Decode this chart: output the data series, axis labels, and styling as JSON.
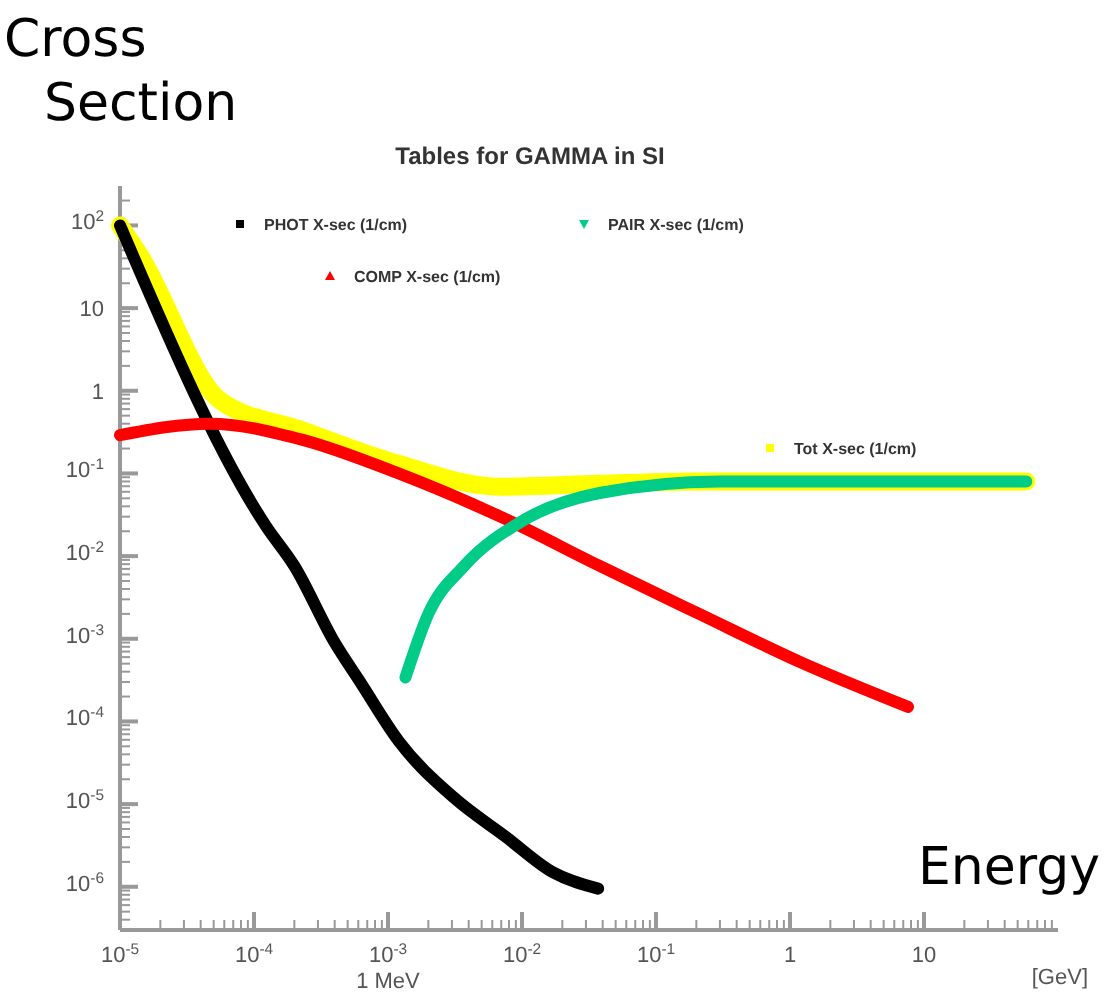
{
  "chart_data": {
    "type": "line",
    "title": "Tables for GAMMA in SI",
    "ylabel": "Cross Section",
    "xlabel": "[GeV]",
    "annotations": [
      "Energy",
      "1 MeV"
    ],
    "log": "xy",
    "xlim": [
      1e-05,
      100
    ],
    "ylim": [
      3e-07,
      300
    ],
    "xticks": [
      {
        "value": 1e-05,
        "label": "10$^{-5}$"
      },
      {
        "value": 0.0001,
        "label": "10$^{-4}$"
      },
      {
        "value": 0.001,
        "label": "10$^{-3}$"
      },
      {
        "value": 0.01,
        "label": "10$^{-2}$"
      },
      {
        "value": 0.1,
        "label": "10$^{-1}$"
      },
      1,
      10
    ],
    "yticks": [
      {
        "value": 1e-06,
        "label": "10$^{-6}$"
      },
      {
        "value": 1e-05,
        "label": "10$^{-5}$"
      },
      {
        "value": 0.0001,
        "label": "10$^{-4}$"
      },
      {
        "value": 0.001,
        "label": "10$^{-3}$"
      },
      {
        "value": 0.01,
        "label": "10$^{-2}$"
      },
      {
        "value": 0.1,
        "label": "10$^{-1}$"
      },
      1,
      10,
      {
        "value": 100,
        "label": "10$^{2}$"
      }
    ],
    "grid": false,
    "legend": "top",
    "marker": "none",
    "line_style": "solid",
    "series": [
      {
        "name": "Tot X-sec (1/cm)",
        "color": "#ffff00",
        "x": [
          1e-05,
          1.4e-05,
          5.6e-05,
          0.00022,
          0.0012,
          0.0069,
          0.038,
          0.21,
          1.2,
          58
        ],
        "values": [
          100,
          44,
          0.76,
          0.34,
          0.13,
          0.069,
          0.075,
          0.08,
          0.08,
          0.08
        ]
      },
      {
        "name": "PHOT X-sec (1/cm)",
        "color": "#000000",
        "x": [
          1e-05,
          0.000123,
          0.0002,
          0.0004,
          0.00062,
          0.0012,
          0.0031,
          0.0076,
          0.017,
          0.037
        ],
        "values": [
          100,
          0.023,
          0.0076,
          0.0009,
          0.0003,
          5.8e-05,
          1.2e-05,
          4e-06,
          1.5e-06,
          9.5e-07
        ]
      },
      {
        "name": "COMP X-sec (1/cm)",
        "color": "#ff0000",
        "x": [
          1e-05,
          4.7e-05,
          0.00022,
          0.0012,
          0.0069,
          0.038,
          0.21,
          1.2,
          7.6
        ],
        "values": [
          0.29,
          0.4,
          0.26,
          0.1,
          0.03,
          0.0076,
          0.002,
          0.00052,
          0.00015
        ]
      },
      {
        "name": "PAIR X-sec (1/cm)",
        "color": "#00cc88",
        "x": [
          0.00135,
          0.002,
          0.0037,
          0.0098,
          0.038,
          0.3,
          2.3,
          58
        ],
        "values": [
          0.00034,
          0.002,
          0.0076,
          0.026,
          0.058,
          0.08,
          0.08,
          0.08
        ]
      }
    ]
  }
}
